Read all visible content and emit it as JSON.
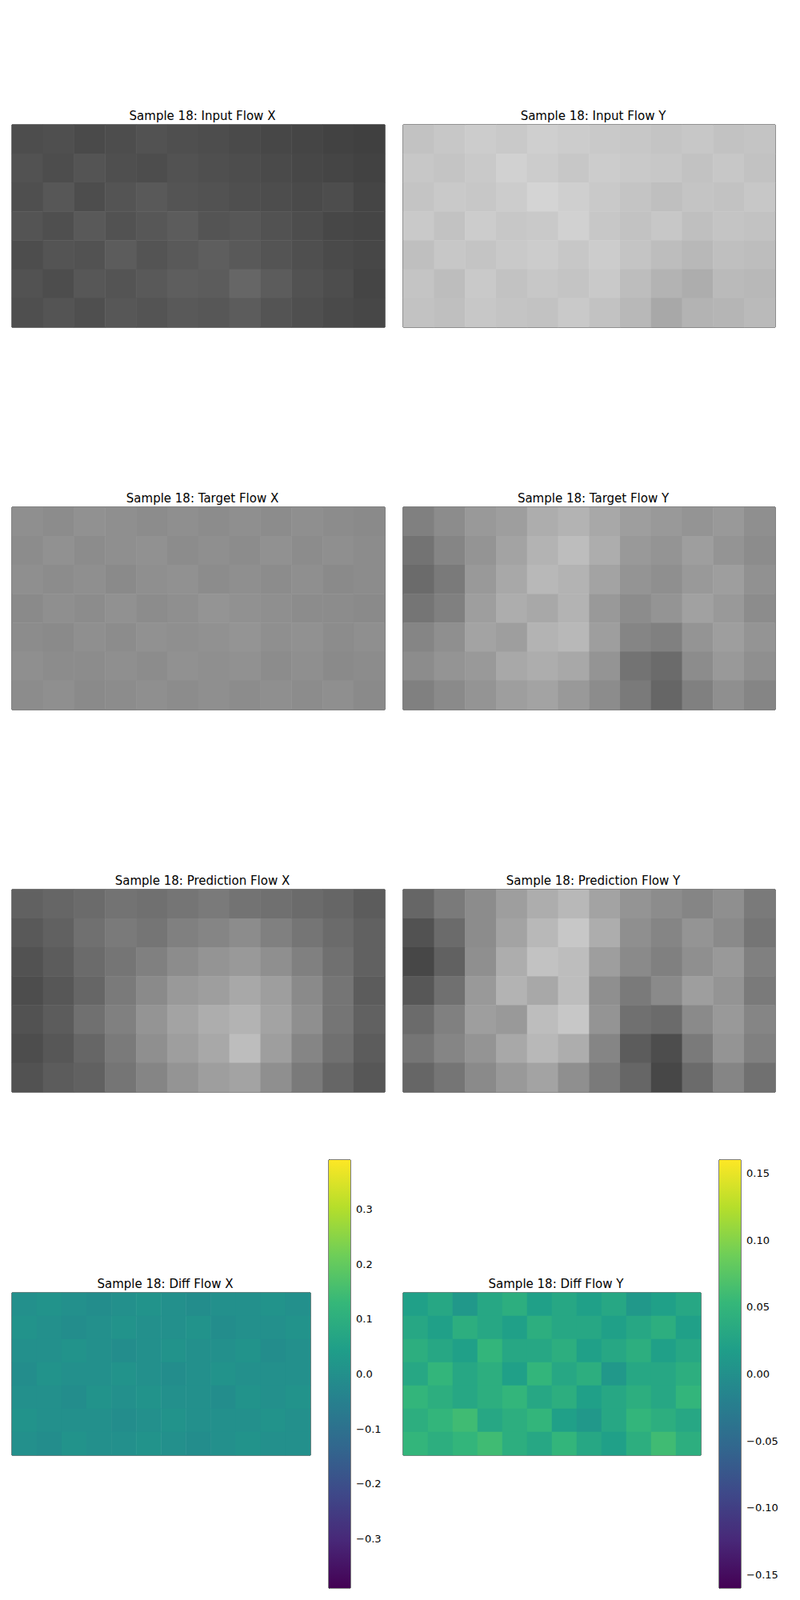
{
  "chart_data": [
    {
      "type": "heatmap",
      "title": "Sample 18: Input Flow X",
      "color": "gray",
      "cell_range": [
        0,
        1
      ],
      "tick_labels": false,
      "cells": [
        [
          0.3,
          0.31,
          0.29,
          0.3,
          0.32,
          0.31,
          0.3,
          0.29,
          0.28,
          0.27,
          0.26,
          0.25
        ],
        [
          0.32,
          0.3,
          0.33,
          0.31,
          0.3,
          0.32,
          0.31,
          0.3,
          0.29,
          0.28,
          0.27,
          0.26
        ],
        [
          0.31,
          0.34,
          0.3,
          0.33,
          0.35,
          0.33,
          0.32,
          0.31,
          0.3,
          0.29,
          0.3,
          0.27
        ],
        [
          0.33,
          0.31,
          0.35,
          0.32,
          0.34,
          0.36,
          0.33,
          0.34,
          0.32,
          0.3,
          0.28,
          0.27
        ],
        [
          0.3,
          0.33,
          0.32,
          0.36,
          0.33,
          0.35,
          0.37,
          0.35,
          0.33,
          0.31,
          0.29,
          0.28
        ],
        [
          0.32,
          0.3,
          0.34,
          0.33,
          0.35,
          0.37,
          0.36,
          0.4,
          0.36,
          0.32,
          0.3,
          0.27
        ],
        [
          0.31,
          0.33,
          0.31,
          0.34,
          0.33,
          0.35,
          0.34,
          0.36,
          0.33,
          0.31,
          0.29,
          0.28
        ]
      ]
    },
    {
      "type": "heatmap",
      "title": "Sample 18: Input Flow Y",
      "color": "gray",
      "cell_range": [
        0,
        1
      ],
      "tick_labels": false,
      "cells": [
        [
          0.76,
          0.78,
          0.8,
          0.79,
          0.81,
          0.8,
          0.79,
          0.78,
          0.77,
          0.78,
          0.76,
          0.77
        ],
        [
          0.78,
          0.77,
          0.79,
          0.82,
          0.8,
          0.78,
          0.8,
          0.79,
          0.78,
          0.76,
          0.78,
          0.76
        ],
        [
          0.77,
          0.79,
          0.78,
          0.8,
          0.83,
          0.81,
          0.79,
          0.77,
          0.75,
          0.77,
          0.76,
          0.78
        ],
        [
          0.79,
          0.76,
          0.8,
          0.78,
          0.79,
          0.82,
          0.78,
          0.76,
          0.78,
          0.75,
          0.77,
          0.76
        ],
        [
          0.75,
          0.78,
          0.77,
          0.79,
          0.8,
          0.78,
          0.8,
          0.77,
          0.74,
          0.72,
          0.75,
          0.74
        ],
        [
          0.77,
          0.74,
          0.79,
          0.76,
          0.78,
          0.77,
          0.79,
          0.74,
          0.7,
          0.68,
          0.73,
          0.72
        ],
        [
          0.76,
          0.75,
          0.78,
          0.77,
          0.76,
          0.79,
          0.76,
          0.72,
          0.66,
          0.7,
          0.71,
          0.73
        ]
      ]
    },
    {
      "type": "heatmap",
      "title": "Sample 18: Target Flow X",
      "color": "gray",
      "cell_range": [
        0,
        1
      ],
      "tick_labels": false,
      "cells": [
        [
          0.56,
          0.55,
          0.57,
          0.56,
          0.55,
          0.56,
          0.55,
          0.56,
          0.55,
          0.56,
          0.55,
          0.54
        ],
        [
          0.55,
          0.57,
          0.55,
          0.56,
          0.57,
          0.55,
          0.56,
          0.55,
          0.57,
          0.55,
          0.56,
          0.55
        ],
        [
          0.56,
          0.55,
          0.56,
          0.54,
          0.56,
          0.57,
          0.55,
          0.56,
          0.55,
          0.56,
          0.54,
          0.55
        ],
        [
          0.54,
          0.56,
          0.55,
          0.57,
          0.55,
          0.56,
          0.58,
          0.57,
          0.56,
          0.55,
          0.55,
          0.54
        ],
        [
          0.55,
          0.54,
          0.56,
          0.55,
          0.57,
          0.56,
          0.57,
          0.58,
          0.56,
          0.57,
          0.55,
          0.56
        ],
        [
          0.56,
          0.55,
          0.55,
          0.56,
          0.55,
          0.57,
          0.56,
          0.57,
          0.55,
          0.56,
          0.54,
          0.55
        ],
        [
          0.55,
          0.56,
          0.54,
          0.55,
          0.56,
          0.55,
          0.56,
          0.55,
          0.56,
          0.55,
          0.56,
          0.54
        ]
      ]
    },
    {
      "type": "heatmap",
      "title": "Sample 18: Target Flow Y",
      "color": "gray",
      "cell_range": [
        0,
        1
      ],
      "tick_labels": false,
      "cells": [
        [
          0.5,
          0.55,
          0.6,
          0.62,
          0.68,
          0.7,
          0.66,
          0.62,
          0.6,
          0.58,
          0.6,
          0.56
        ],
        [
          0.45,
          0.52,
          0.58,
          0.64,
          0.7,
          0.74,
          0.68,
          0.6,
          0.58,
          0.62,
          0.58,
          0.55
        ],
        [
          0.42,
          0.48,
          0.6,
          0.66,
          0.72,
          0.7,
          0.64,
          0.58,
          0.56,
          0.6,
          0.62,
          0.57
        ],
        [
          0.46,
          0.5,
          0.62,
          0.68,
          0.66,
          0.7,
          0.6,
          0.55,
          0.58,
          0.63,
          0.6,
          0.55
        ],
        [
          0.52,
          0.56,
          0.64,
          0.62,
          0.7,
          0.72,
          0.62,
          0.52,
          0.5,
          0.58,
          0.62,
          0.58
        ],
        [
          0.55,
          0.58,
          0.6,
          0.66,
          0.68,
          0.66,
          0.58,
          0.45,
          0.42,
          0.55,
          0.6,
          0.56
        ],
        [
          0.5,
          0.54,
          0.58,
          0.62,
          0.64,
          0.6,
          0.55,
          0.48,
          0.4,
          0.5,
          0.56,
          0.52
        ]
      ]
    },
    {
      "type": "heatmap",
      "title": "Sample 18: Prediction Flow X",
      "color": "gray",
      "cell_range": [
        0,
        1
      ],
      "tick_labels": false,
      "cells": [
        [
          0.38,
          0.4,
          0.42,
          0.45,
          0.44,
          0.46,
          0.48,
          0.45,
          0.44,
          0.42,
          0.4,
          0.36
        ],
        [
          0.35,
          0.38,
          0.44,
          0.48,
          0.46,
          0.5,
          0.52,
          0.55,
          0.5,
          0.46,
          0.42,
          0.38
        ],
        [
          0.32,
          0.36,
          0.42,
          0.46,
          0.5,
          0.55,
          0.58,
          0.6,
          0.56,
          0.5,
          0.44,
          0.38
        ],
        [
          0.3,
          0.34,
          0.4,
          0.48,
          0.54,
          0.6,
          0.62,
          0.66,
          0.62,
          0.54,
          0.46,
          0.36
        ],
        [
          0.32,
          0.36,
          0.44,
          0.5,
          0.58,
          0.64,
          0.68,
          0.7,
          0.64,
          0.56,
          0.46,
          0.38
        ],
        [
          0.3,
          0.34,
          0.4,
          0.48,
          0.56,
          0.62,
          0.66,
          0.74,
          0.62,
          0.52,
          0.44,
          0.36
        ],
        [
          0.32,
          0.36,
          0.38,
          0.46,
          0.52,
          0.58,
          0.62,
          0.64,
          0.56,
          0.48,
          0.4,
          0.34
        ]
      ]
    },
    {
      "type": "heatmap",
      "title": "Sample 18: Prediction Flow Y",
      "color": "gray",
      "cell_range": [
        0,
        1
      ],
      "tick_labels": false,
      "cells": [
        [
          0.4,
          0.48,
          0.55,
          0.62,
          0.68,
          0.72,
          0.64,
          0.58,
          0.55,
          0.52,
          0.56,
          0.48
        ],
        [
          0.32,
          0.42,
          0.55,
          0.64,
          0.72,
          0.78,
          0.68,
          0.56,
          0.52,
          0.58,
          0.54,
          0.46
        ],
        [
          0.28,
          0.38,
          0.56,
          0.68,
          0.76,
          0.74,
          0.62,
          0.54,
          0.5,
          0.56,
          0.6,
          0.5
        ],
        [
          0.34,
          0.44,
          0.6,
          0.7,
          0.66,
          0.74,
          0.56,
          0.48,
          0.54,
          0.62,
          0.58,
          0.48
        ],
        [
          0.42,
          0.5,
          0.62,
          0.6,
          0.74,
          0.78,
          0.58,
          0.44,
          0.42,
          0.54,
          0.6,
          0.52
        ],
        [
          0.46,
          0.52,
          0.58,
          0.66,
          0.72,
          0.68,
          0.52,
          0.36,
          0.3,
          0.48,
          0.58,
          0.5
        ],
        [
          0.4,
          0.46,
          0.54,
          0.6,
          0.64,
          0.56,
          0.48,
          0.4,
          0.28,
          0.42,
          0.52,
          0.44
        ]
      ]
    },
    {
      "type": "heatmap",
      "title": "Sample 18: Diff Flow X",
      "color": "viridis",
      "tick_labels": false,
      "colorbar": {
        "range": [
          -0.39,
          0.39
        ],
        "ticks": [
          {
            "value": -0.3,
            "label": "−0.3"
          },
          {
            "value": -0.2,
            "label": "−0.2"
          },
          {
            "value": -0.1,
            "label": "−0.1"
          },
          {
            "value": 0,
            "label": "0.0"
          },
          0.1,
          0.2,
          0.3
        ]
      },
      "cells": [
        [
          0.0,
          0.01,
          0.0,
          -0.01,
          0.0,
          0.01,
          0.0,
          -0.01,
          0.0,
          0.0,
          0.01,
          0.0
        ],
        [
          0.01,
          0.0,
          -0.01,
          0.0,
          0.01,
          0.0,
          0.0,
          0.01,
          -0.01,
          0.0,
          0.0,
          0.01
        ],
        [
          0.0,
          0.0,
          0.01,
          0.0,
          -0.01,
          0.0,
          0.01,
          0.0,
          0.0,
          0.01,
          -0.01,
          0.0
        ],
        [
          -0.01,
          0.01,
          0.0,
          0.0,
          0.01,
          0.0,
          -0.01,
          0.0,
          0.01,
          0.0,
          0.0,
          0.0
        ],
        [
          0.0,
          0.0,
          -0.01,
          0.01,
          0.0,
          0.01,
          0.0,
          0.0,
          -0.01,
          0.01,
          0.0,
          0.01
        ],
        [
          0.01,
          0.0,
          0.0,
          0.0,
          -0.01,
          0.0,
          0.01,
          0.0,
          0.0,
          0.0,
          0.01,
          0.0
        ],
        [
          0.0,
          -0.01,
          0.01,
          0.0,
          0.0,
          0.01,
          0.0,
          -0.01,
          0.0,
          0.01,
          0.0,
          0.0
        ]
      ]
    },
    {
      "type": "heatmap",
      "title": "Sample 18: Diff Flow Y",
      "color": "viridis",
      "tick_labels": false,
      "colorbar": {
        "range": [
          -0.16,
          0.16
        ],
        "ticks": [
          {
            "value": -0.15,
            "label": "−0.15"
          },
          {
            "value": -0.1,
            "label": "−0.10"
          },
          {
            "value": -0.05,
            "label": "−0.05"
          },
          {
            "value": 0,
            "label": "0.00"
          },
          0.05,
          {
            "value": 0.1,
            "label": "0.10"
          },
          0.15
        ]
      },
      "cells": [
        [
          0.02,
          0.03,
          0.01,
          0.03,
          0.04,
          0.02,
          0.03,
          0.02,
          0.03,
          0.01,
          0.02,
          0.03
        ],
        [
          0.03,
          0.02,
          0.04,
          0.03,
          0.02,
          0.04,
          0.03,
          0.03,
          0.02,
          0.03,
          0.04,
          0.02
        ],
        [
          0.04,
          0.03,
          0.02,
          0.05,
          0.03,
          0.03,
          0.04,
          0.02,
          0.03,
          0.04,
          0.02,
          0.03
        ],
        [
          0.03,
          0.05,
          0.03,
          0.04,
          0.02,
          0.05,
          0.03,
          0.04,
          0.01,
          0.03,
          0.03,
          0.04
        ],
        [
          0.05,
          0.04,
          0.03,
          0.04,
          0.05,
          0.03,
          0.04,
          0.02,
          0.03,
          0.04,
          0.03,
          0.05
        ],
        [
          0.04,
          0.05,
          0.06,
          0.03,
          0.04,
          0.05,
          0.02,
          0.01,
          0.03,
          0.05,
          0.04,
          0.03
        ],
        [
          0.05,
          0.04,
          0.05,
          0.06,
          0.04,
          0.03,
          0.05,
          0.03,
          0.02,
          0.04,
          0.06,
          0.04
        ]
      ]
    }
  ]
}
